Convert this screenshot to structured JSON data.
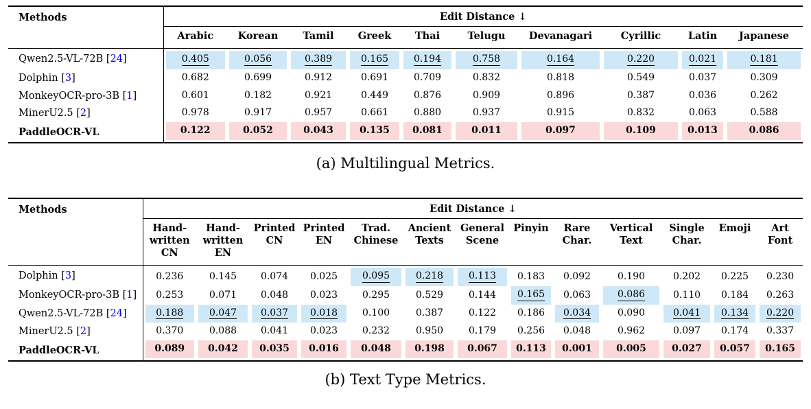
{
  "colors": {
    "second_best_bg": "#cfe8f8",
    "best_bg": "#fbd9da",
    "citation_blue": "#0000ee"
  },
  "citation_format": {
    "prefix": " [",
    "suffix": "]"
  },
  "tables": [
    {
      "caption": "(a) Multilingual Metrics.",
      "methods_header": "Methods",
      "group_header": "Edit Distance ↓",
      "columns": [
        "Arabic",
        "Korean",
        "Tamil",
        "Greek",
        "Thai",
        "Telugu",
        "Devanagari",
        "Cyrillic",
        "Latin",
        "Japanese"
      ],
      "rows": [
        {
          "method": "Qwen2.5-VL-72B",
          "citation": "24",
          "best": false,
          "second_best": [
            0,
            1,
            2,
            3,
            4,
            5,
            6,
            7,
            8,
            9
          ],
          "values": [
            "0.405",
            "0.056",
            "0.389",
            "0.165",
            "0.194",
            "0.758",
            "0.164",
            "0.220",
            "0.021",
            "0.181"
          ]
        },
        {
          "method": "Dolphin",
          "citation": "3",
          "best": false,
          "second_best": [],
          "values": [
            "0.682",
            "0.699",
            "0.912",
            "0.691",
            "0.709",
            "0.832",
            "0.818",
            "0.549",
            "0.037",
            "0.309"
          ]
        },
        {
          "method": "MonkeyOCR-pro-3B",
          "citation": "1",
          "best": false,
          "second_best": [],
          "values": [
            "0.601",
            "0.182",
            "0.921",
            "0.449",
            "0.876",
            "0.909",
            "0.896",
            "0.387",
            "0.036",
            "0.262"
          ]
        },
        {
          "method": "MinerU2.5",
          "citation": "2",
          "best": false,
          "second_best": [],
          "values": [
            "0.978",
            "0.917",
            "0.957",
            "0.661",
            "0.880",
            "0.937",
            "0.915",
            "0.832",
            "0.063",
            "0.588"
          ]
        },
        {
          "method": "PaddleOCR-VL",
          "citation": null,
          "best": true,
          "second_best": [],
          "values": [
            "0.122",
            "0.052",
            "0.043",
            "0.135",
            "0.081",
            "0.011",
            "0.097",
            "0.109",
            "0.013",
            "0.086"
          ]
        }
      ]
    },
    {
      "caption": "(b) Text Type Metrics.",
      "methods_header": "Methods",
      "group_header": "Edit Distance ↓",
      "columns": [
        "Hand-\nwritten\nCN",
        "Hand-\nwritten\nEN",
        "Printed\nCN",
        "Printed\nEN",
        "Trad.\nChinese",
        "Ancient\nTexts",
        "General\nScene",
        "Pinyin",
        "Rare\nChar.",
        "Vertical\nText",
        "Single\nChar.",
        "Emoji",
        "Art\nFont"
      ],
      "rows": [
        {
          "method": "Dolphin",
          "citation": "3",
          "best": false,
          "second_best": [
            4,
            5,
            6
          ],
          "values": [
            "0.236",
            "0.145",
            "0.074",
            "0.025",
            "0.095",
            "0.218",
            "0.113",
            "0.183",
            "0.092",
            "0.190",
            "0.202",
            "0.225",
            "0.230"
          ]
        },
        {
          "method": "MonkeyOCR-pro-3B",
          "citation": "1",
          "best": false,
          "second_best": [
            7,
            9
          ],
          "values": [
            "0.253",
            "0.071",
            "0.048",
            "0.023",
            "0.295",
            "0.529",
            "0.144",
            "0.165",
            "0.063",
            "0.086",
            "0.110",
            "0.184",
            "0.263"
          ]
        },
        {
          "method": "Qwen2.5-VL-72B",
          "citation": "24",
          "best": false,
          "second_best": [
            0,
            1,
            2,
            3,
            8,
            10,
            11,
            12
          ],
          "values": [
            "0.188",
            "0.047",
            "0.037",
            "0.018",
            "0.100",
            "0.387",
            "0.122",
            "0.186",
            "0.034",
            "0.090",
            "0.041",
            "0.134",
            "0.220"
          ]
        },
        {
          "method": "MinerU2.5",
          "citation": "2",
          "best": false,
          "second_best": [],
          "values": [
            "0.370",
            "0.088",
            "0.041",
            "0.023",
            "0.232",
            "0.950",
            "0.179",
            "0.256",
            "0.048",
            "0.962",
            "0.097",
            "0.174",
            "0.337"
          ]
        },
        {
          "method": "PaddleOCR-VL",
          "citation": null,
          "best": true,
          "second_best": [],
          "values": [
            "0.089",
            "0.042",
            "0.035",
            "0.016",
            "0.048",
            "0.198",
            "0.067",
            "0.113",
            "0.001",
            "0.005",
            "0.027",
            "0.057",
            "0.165"
          ]
        }
      ]
    }
  ]
}
